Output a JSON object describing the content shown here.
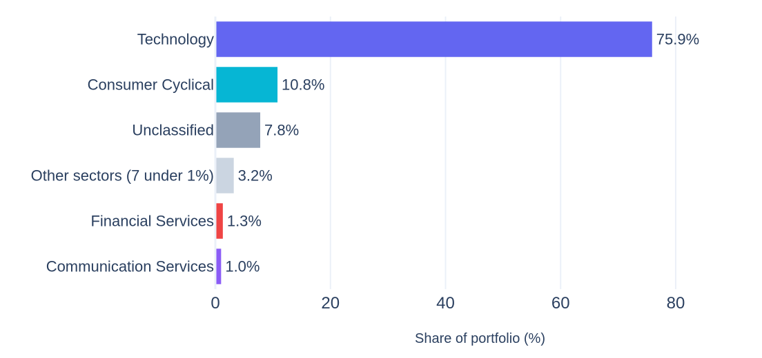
{
  "chart_data": {
    "type": "bar",
    "orientation": "horizontal",
    "categories": [
      "Technology",
      "Consumer Cyclical",
      "Unclassified",
      "Other sectors (7 under 1%)",
      "Financial Services",
      "Communication Services"
    ],
    "values": [
      75.9,
      10.8,
      7.8,
      3.2,
      1.3,
      1.0
    ],
    "value_labels": [
      "75.9%",
      "10.8%",
      "7.8%",
      "3.2%",
      "1.3%",
      "1.0%"
    ],
    "colors": [
      "#6366f1",
      "#06b6d4",
      "#94a3b8",
      "#cbd5e1",
      "#ef4444",
      "#8b5cf6"
    ],
    "xlabel": "Share of portfolio (%)",
    "ylabel": "",
    "title": "",
    "xlim": [
      0,
      92
    ],
    "xticks": [
      0,
      20,
      40,
      60,
      80
    ],
    "grid": true,
    "legend": "none"
  }
}
